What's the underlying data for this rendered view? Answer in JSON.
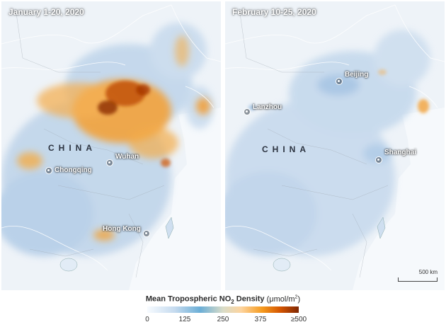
{
  "panels": [
    {
      "title": "January 1-20, 2020",
      "country_label": "CHINA",
      "cities": [
        {
          "name": "Chongqing"
        },
        {
          "name": "Wuhan"
        },
        {
          "name": "Hong Kong"
        }
      ]
    },
    {
      "title": "February 10-25, 2020",
      "country_label": "CHINA",
      "cities": [
        {
          "name": "Beijing"
        },
        {
          "name": "Lanzhou"
        },
        {
          "name": "Shanghai"
        }
      ],
      "scale_bar": "500 km"
    }
  ],
  "legend": {
    "title_prefix": "Mean Tropospheric NO",
    "subscript": "2",
    "title_suffix": " Density",
    "unit_prefix": "(μmol/m",
    "unit_sup": "2",
    "unit_suffix": ")",
    "ticks": [
      "0",
      "125",
      "250",
      "375",
      "≥500"
    ],
    "colors": [
      "#f7fbff",
      "#c6dbef",
      "#6baed6",
      "#fdd49e",
      "#f59a1e",
      "#d35400",
      "#7f2704"
    ]
  }
}
